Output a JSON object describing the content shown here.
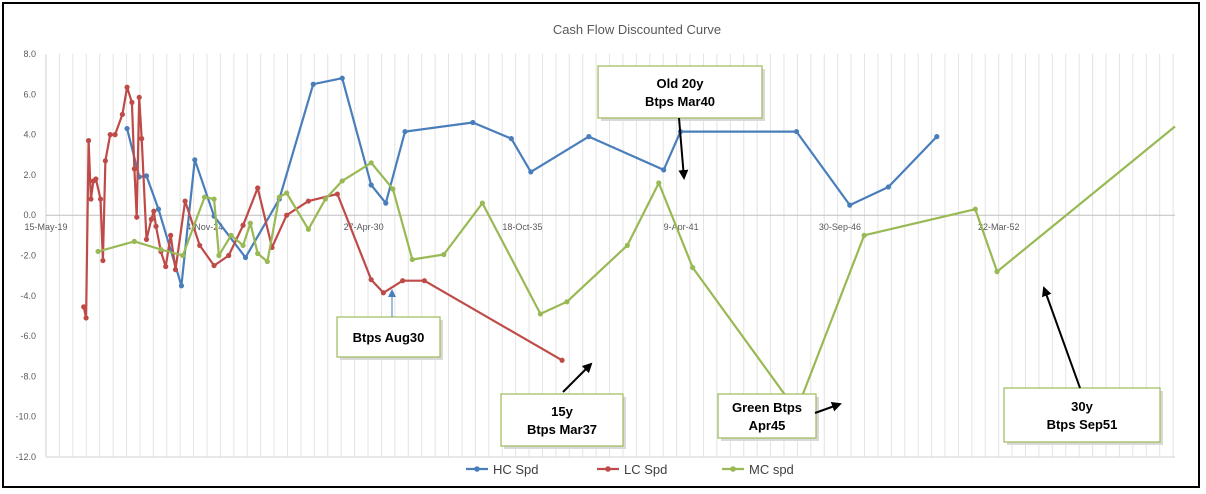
{
  "chart_data": {
    "type": "line",
    "title": "Cash Flow Discounted Curve",
    "xlabel": "",
    "ylabel": "",
    "x_axis_type": "date",
    "xlim": [
      "2019-05-15",
      "2058-04-20"
    ],
    "ylim": [
      -12.0,
      8.0
    ],
    "x_tick_labels": [
      "15-May-19",
      "4-Nov-24",
      "27-Apr-30",
      "18-Oct-35",
      "9-Apr-41",
      "30-Sep-46",
      "22-Mar-52"
    ],
    "y_tick_labels": [
      "8.0",
      "6.0",
      "4.0",
      "2.0",
      "0.0",
      "-2.0",
      "-4.0",
      "-6.0",
      "-8.0",
      "-10.0",
      "-12.0"
    ],
    "grid": "vertical",
    "legend": "bottom",
    "colors": {
      "HC Spd": "#4a7ebb",
      "LC Spd": "#be4b48",
      "MC spd": "#98b954"
    },
    "series": [
      {
        "name": "HC Spd",
        "color": "#4a7ebb",
        "points": [
          [
            "2022-03-01",
            4.3
          ],
          [
            "2022-08-01",
            1.9
          ],
          [
            "2022-11-01",
            1.95
          ],
          [
            "2023-04-01",
            0.3
          ],
          [
            "2024-01-15",
            -3.5
          ],
          [
            "2024-07-01",
            2.75
          ],
          [
            "2025-03-01",
            -0.05
          ],
          [
            "2026-04-01",
            -2.1
          ],
          [
            "2027-06-01",
            0.8
          ],
          [
            "2028-08-01",
            6.5
          ],
          [
            "2029-08-01",
            6.8
          ],
          [
            "2030-08-01",
            1.5
          ],
          [
            "2031-02-01",
            0.6
          ],
          [
            "2031-10-01",
            4.15
          ],
          [
            "2034-02-01",
            4.6
          ],
          [
            "2035-06-01",
            3.8
          ],
          [
            "2036-02-01",
            2.15
          ],
          [
            "2038-02-01",
            3.9
          ],
          [
            "2040-09-01",
            2.25
          ],
          [
            "2041-04-01",
            4.15
          ],
          [
            "2045-04-01",
            4.15
          ],
          [
            "2047-02-01",
            0.5
          ],
          [
            "2048-06-01",
            1.4
          ],
          [
            "2050-02-01",
            3.9
          ]
        ]
      },
      {
        "name": "LC Spd",
        "color": "#be4b48",
        "points": [
          [
            "2020-09-01",
            -4.55
          ],
          [
            "2020-10-01",
            -5.1
          ],
          [
            "2020-11-01",
            3.7
          ],
          [
            "2020-12-01",
            0.8
          ],
          [
            "2021-01-01",
            1.7
          ],
          [
            "2021-02-01",
            1.8
          ],
          [
            "2021-04-01",
            0.8
          ],
          [
            "2021-05-01",
            -2.25
          ],
          [
            "2021-06-01",
            2.7
          ],
          [
            "2021-08-01",
            4.0
          ],
          [
            "2021-10-01",
            4.0
          ],
          [
            "2022-01-01",
            5.0
          ],
          [
            "2022-03-01",
            6.35
          ],
          [
            "2022-05-01",
            5.6
          ],
          [
            "2022-06-01",
            2.3
          ],
          [
            "2022-07-01",
            -0.1
          ],
          [
            "2022-08-01",
            5.85
          ],
          [
            "2022-09-01",
            3.8
          ],
          [
            "2022-11-01",
            -1.2
          ],
          [
            "2023-01-01",
            -0.2
          ],
          [
            "2023-02-01",
            0.2
          ],
          [
            "2023-03-01",
            -0.55
          ],
          [
            "2023-05-01",
            -1.8
          ],
          [
            "2023-07-01",
            -2.55
          ],
          [
            "2023-09-01",
            -1.0
          ],
          [
            "2023-11-01",
            -2.7
          ],
          [
            "2024-03-01",
            0.7
          ],
          [
            "2024-09-01",
            -1.5
          ],
          [
            "2025-03-01",
            -2.5
          ],
          [
            "2025-09-01",
            -2.0
          ],
          [
            "2026-03-01",
            -0.5
          ],
          [
            "2026-09-01",
            1.35
          ],
          [
            "2027-03-01",
            -1.6
          ],
          [
            "2027-09-01",
            0.0
          ],
          [
            "2028-06-01",
            0.7
          ],
          [
            "2029-06-01",
            1.05
          ],
          [
            "2030-08-01",
            -3.2
          ],
          [
            "2031-01-01",
            -3.85
          ],
          [
            "2031-09-01",
            -3.25
          ],
          [
            "2032-06-01",
            -3.25
          ],
          [
            "2037-03-01",
            -7.2
          ]
        ]
      },
      {
        "name": "MC spd",
        "color": "#98b954",
        "points": [
          [
            "2021-03-01",
            -1.8
          ],
          [
            "2022-06-01",
            -1.3
          ],
          [
            "2023-05-01",
            -1.7
          ],
          [
            "2024-02-01",
            -2.0
          ],
          [
            "2024-11-01",
            0.9
          ],
          [
            "2025-03-01",
            0.8
          ],
          [
            "2025-05-01",
            -2.0
          ],
          [
            "2025-10-01",
            -1.0
          ],
          [
            "2026-03-01",
            -1.5
          ],
          [
            "2026-06-01",
            -0.4
          ],
          [
            "2026-09-01",
            -1.9
          ],
          [
            "2027-01-01",
            -2.3
          ],
          [
            "2027-06-01",
            0.9
          ],
          [
            "2027-09-01",
            1.1
          ],
          [
            "2028-06-01",
            -0.7
          ],
          [
            "2029-01-01",
            0.8
          ],
          [
            "2029-08-01",
            1.7
          ],
          [
            "2030-08-01",
            2.6
          ],
          [
            "2031-05-01",
            1.3
          ],
          [
            "2032-01-01",
            -2.2
          ],
          [
            "2033-02-01",
            -1.95
          ],
          [
            "2034-06-01",
            0.6
          ],
          [
            "2036-06-01",
            -4.9
          ],
          [
            "2037-05-01",
            -4.3
          ],
          [
            "2039-06-01",
            -1.5
          ],
          [
            "2040-07-01",
            1.6
          ],
          [
            "2041-09-01",
            -2.6
          ],
          [
            "2045-04-01",
            -9.7
          ],
          [
            "2047-08-01",
            -1.0
          ],
          [
            "2051-06-01",
            0.3
          ],
          [
            "2052-03-01",
            -2.8
          ],
          [
            "2058-04-20",
            4.4
          ]
        ]
      }
    ],
    "annotations": [
      {
        "id": "old20y",
        "lines": [
          "Old 20y",
          "Btps Mar40"
        ]
      },
      {
        "id": "aug30",
        "lines": [
          "Btps Aug30"
        ]
      },
      {
        "id": "mar37",
        "lines": [
          "15y",
          "Btps Mar37"
        ]
      },
      {
        "id": "apr45",
        "lines": [
          "Green Btps",
          "Apr45"
        ]
      },
      {
        "id": "sep51",
        "lines": [
          "30y",
          "Btps Sep51"
        ]
      }
    ]
  }
}
